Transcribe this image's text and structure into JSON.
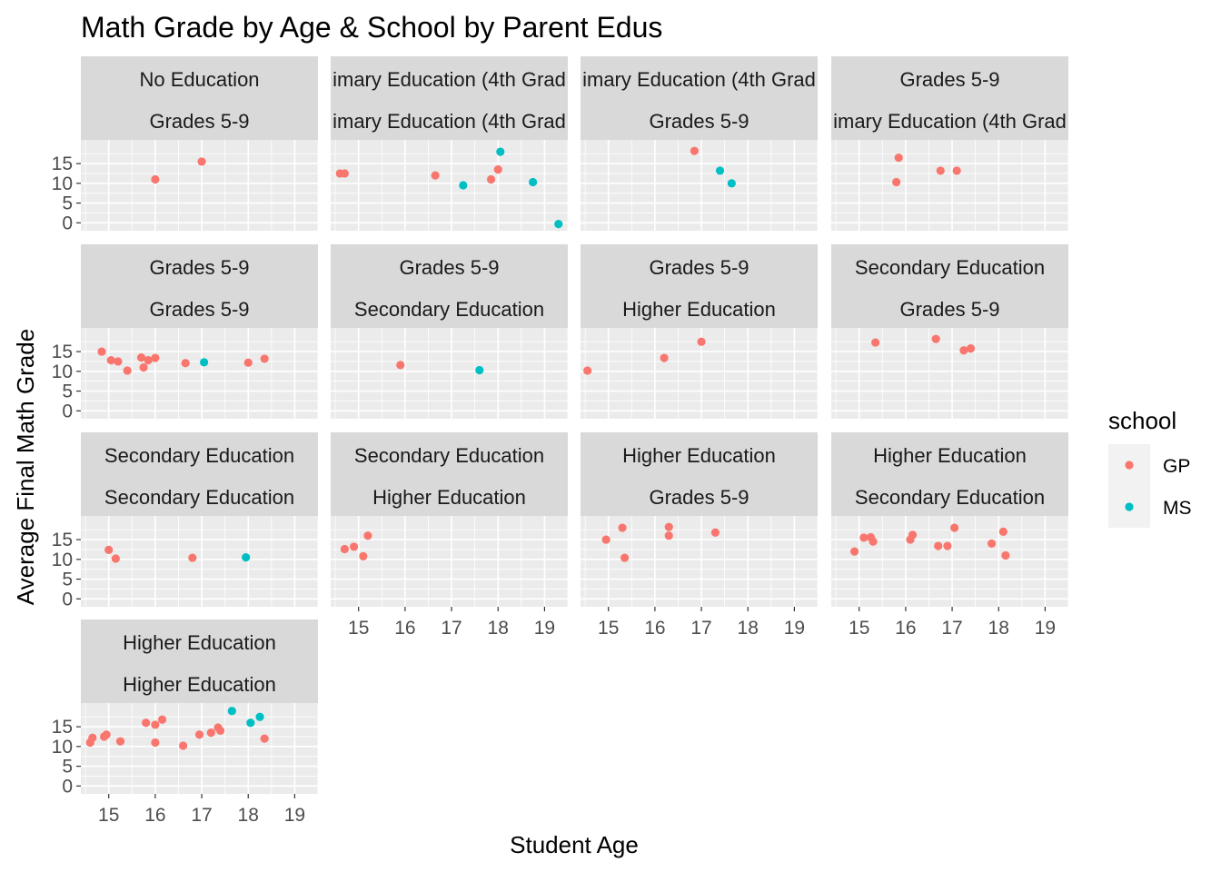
{
  "chart_data": {
    "type": "scatter",
    "title": "Math Grade by Age & School by Parent Edus",
    "xlabel": "Student Age",
    "ylabel": "Average Final Math Grade",
    "x_ticks": [
      15,
      16,
      17,
      18,
      19
    ],
    "y_ticks": [
      0,
      5,
      10,
      15
    ],
    "xlim": [
      14.4,
      19.5
    ],
    "ylim": [
      -2,
      21
    ],
    "grid": true,
    "legend": {
      "title": "school",
      "placement": "right",
      "entries": [
        {
          "name": "GP",
          "color": "#F8766D"
        },
        {
          "name": "MS",
          "color": "#00BFC4"
        }
      ]
    },
    "panels": [
      {
        "strip_top": "No Education",
        "strip_bottom": "Grades 5-9",
        "points": [
          [
            16.0,
            11.0,
            "GP"
          ],
          [
            17.0,
            15.5,
            "GP"
          ]
        ]
      },
      {
        "strip_top": "imary Education (4th Grad",
        "strip_bottom": "imary Education (4th Grad",
        "points": [
          [
            14.6,
            12.5,
            "GP"
          ],
          [
            14.7,
            12.5,
            "GP"
          ],
          [
            16.65,
            12.0,
            "GP"
          ],
          [
            17.85,
            11.0,
            "GP"
          ],
          [
            18.0,
            13.5,
            "GP"
          ],
          [
            17.25,
            9.5,
            "MS"
          ],
          [
            18.05,
            18.0,
            "MS"
          ],
          [
            18.75,
            10.3,
            "MS"
          ],
          [
            19.3,
            -0.3,
            "MS"
          ]
        ]
      },
      {
        "strip_top": "imary Education (4th Grad",
        "strip_bottom": "Grades 5-9",
        "points": [
          [
            16.85,
            18.2,
            "GP"
          ],
          [
            17.4,
            13.2,
            "MS"
          ],
          [
            17.65,
            10.0,
            "MS"
          ]
        ]
      },
      {
        "strip_top": "Grades 5-9",
        "strip_bottom": "imary Education (4th Grad",
        "points": [
          [
            15.8,
            10.3,
            "GP"
          ],
          [
            15.85,
            16.5,
            "GP"
          ],
          [
            16.75,
            13.2,
            "GP"
          ],
          [
            17.1,
            13.2,
            "GP"
          ]
        ]
      },
      {
        "strip_top": "Grades 5-9",
        "strip_bottom": "Grades 5-9",
        "points": [
          [
            14.85,
            15.0,
            "GP"
          ],
          [
            15.05,
            12.8,
            "GP"
          ],
          [
            15.2,
            12.5,
            "GP"
          ],
          [
            15.4,
            10.2,
            "GP"
          ],
          [
            15.7,
            13.5,
            "GP"
          ],
          [
            15.75,
            11.0,
            "GP"
          ],
          [
            15.85,
            12.8,
            "GP"
          ],
          [
            16.0,
            13.4,
            "GP"
          ],
          [
            16.65,
            12.1,
            "GP"
          ],
          [
            18.0,
            12.2,
            "GP"
          ],
          [
            18.35,
            13.2,
            "GP"
          ],
          [
            17.05,
            12.3,
            "MS"
          ]
        ]
      },
      {
        "strip_top": "Grades 5-9",
        "strip_bottom": "Secondary Education",
        "points": [
          [
            15.9,
            11.6,
            "GP"
          ],
          [
            17.6,
            10.3,
            "MS"
          ]
        ]
      },
      {
        "strip_top": "Grades 5-9",
        "strip_bottom": "Higher Education",
        "points": [
          [
            14.55,
            10.2,
            "GP"
          ],
          [
            16.2,
            13.4,
            "GP"
          ],
          [
            17.0,
            17.5,
            "GP"
          ]
        ]
      },
      {
        "strip_top": "Secondary Education",
        "strip_bottom": "Grades 5-9",
        "points": [
          [
            15.35,
            17.3,
            "GP"
          ],
          [
            16.65,
            18.2,
            "GP"
          ],
          [
            17.25,
            15.3,
            "GP"
          ],
          [
            17.4,
            15.8,
            "GP"
          ]
        ]
      },
      {
        "strip_top": "Secondary Education",
        "strip_bottom": "Secondary Education",
        "points": [
          [
            15.0,
            12.4,
            "GP"
          ],
          [
            15.15,
            10.2,
            "GP"
          ],
          [
            16.8,
            10.4,
            "GP"
          ],
          [
            17.95,
            10.5,
            "MS"
          ]
        ]
      },
      {
        "strip_top": "Secondary Education",
        "strip_bottom": "Higher Education",
        "points": [
          [
            14.7,
            12.6,
            "GP"
          ],
          [
            14.9,
            13.2,
            "GP"
          ],
          [
            15.1,
            10.8,
            "GP"
          ],
          [
            15.2,
            16.0,
            "GP"
          ]
        ]
      },
      {
        "strip_top": "Higher Education",
        "strip_bottom": "Grades 5-9",
        "points": [
          [
            14.95,
            15.0,
            "GP"
          ],
          [
            15.3,
            18.0,
            "GP"
          ],
          [
            15.35,
            10.4,
            "GP"
          ],
          [
            16.3,
            18.2,
            "GP"
          ],
          [
            16.3,
            16.0,
            "GP"
          ],
          [
            17.3,
            16.8,
            "GP"
          ]
        ]
      },
      {
        "strip_top": "Higher Education",
        "strip_bottom": "Secondary Education",
        "points": [
          [
            14.9,
            12.0,
            "GP"
          ],
          [
            15.1,
            15.5,
            "GP"
          ],
          [
            15.25,
            15.6,
            "GP"
          ],
          [
            15.3,
            14.5,
            "GP"
          ],
          [
            16.1,
            15.0,
            "GP"
          ],
          [
            16.15,
            16.2,
            "GP"
          ],
          [
            16.7,
            13.4,
            "GP"
          ],
          [
            16.9,
            13.4,
            "GP"
          ],
          [
            17.05,
            18.0,
            "GP"
          ],
          [
            17.85,
            14.0,
            "GP"
          ],
          [
            18.1,
            17.0,
            "GP"
          ],
          [
            18.15,
            11.0,
            "GP"
          ]
        ]
      },
      {
        "strip_top": "Higher Education",
        "strip_bottom": "Higher Education",
        "points": [
          [
            14.6,
            11.0,
            "GP"
          ],
          [
            14.65,
            12.2,
            "GP"
          ],
          [
            14.9,
            12.5,
            "GP"
          ],
          [
            14.95,
            13.0,
            "GP"
          ],
          [
            15.25,
            11.3,
            "GP"
          ],
          [
            15.8,
            16.0,
            "GP"
          ],
          [
            16.0,
            15.5,
            "GP"
          ],
          [
            16.0,
            11.0,
            "GP"
          ],
          [
            16.15,
            16.8,
            "GP"
          ],
          [
            16.6,
            10.2,
            "GP"
          ],
          [
            16.95,
            13.0,
            "GP"
          ],
          [
            17.2,
            13.5,
            "GP"
          ],
          [
            17.35,
            14.8,
            "GP"
          ],
          [
            17.4,
            14.0,
            "GP"
          ],
          [
            18.35,
            12.0,
            "GP"
          ],
          [
            17.65,
            19.0,
            "MS"
          ],
          [
            18.05,
            16.0,
            "MS"
          ],
          [
            18.25,
            17.5,
            "MS"
          ]
        ]
      }
    ]
  }
}
